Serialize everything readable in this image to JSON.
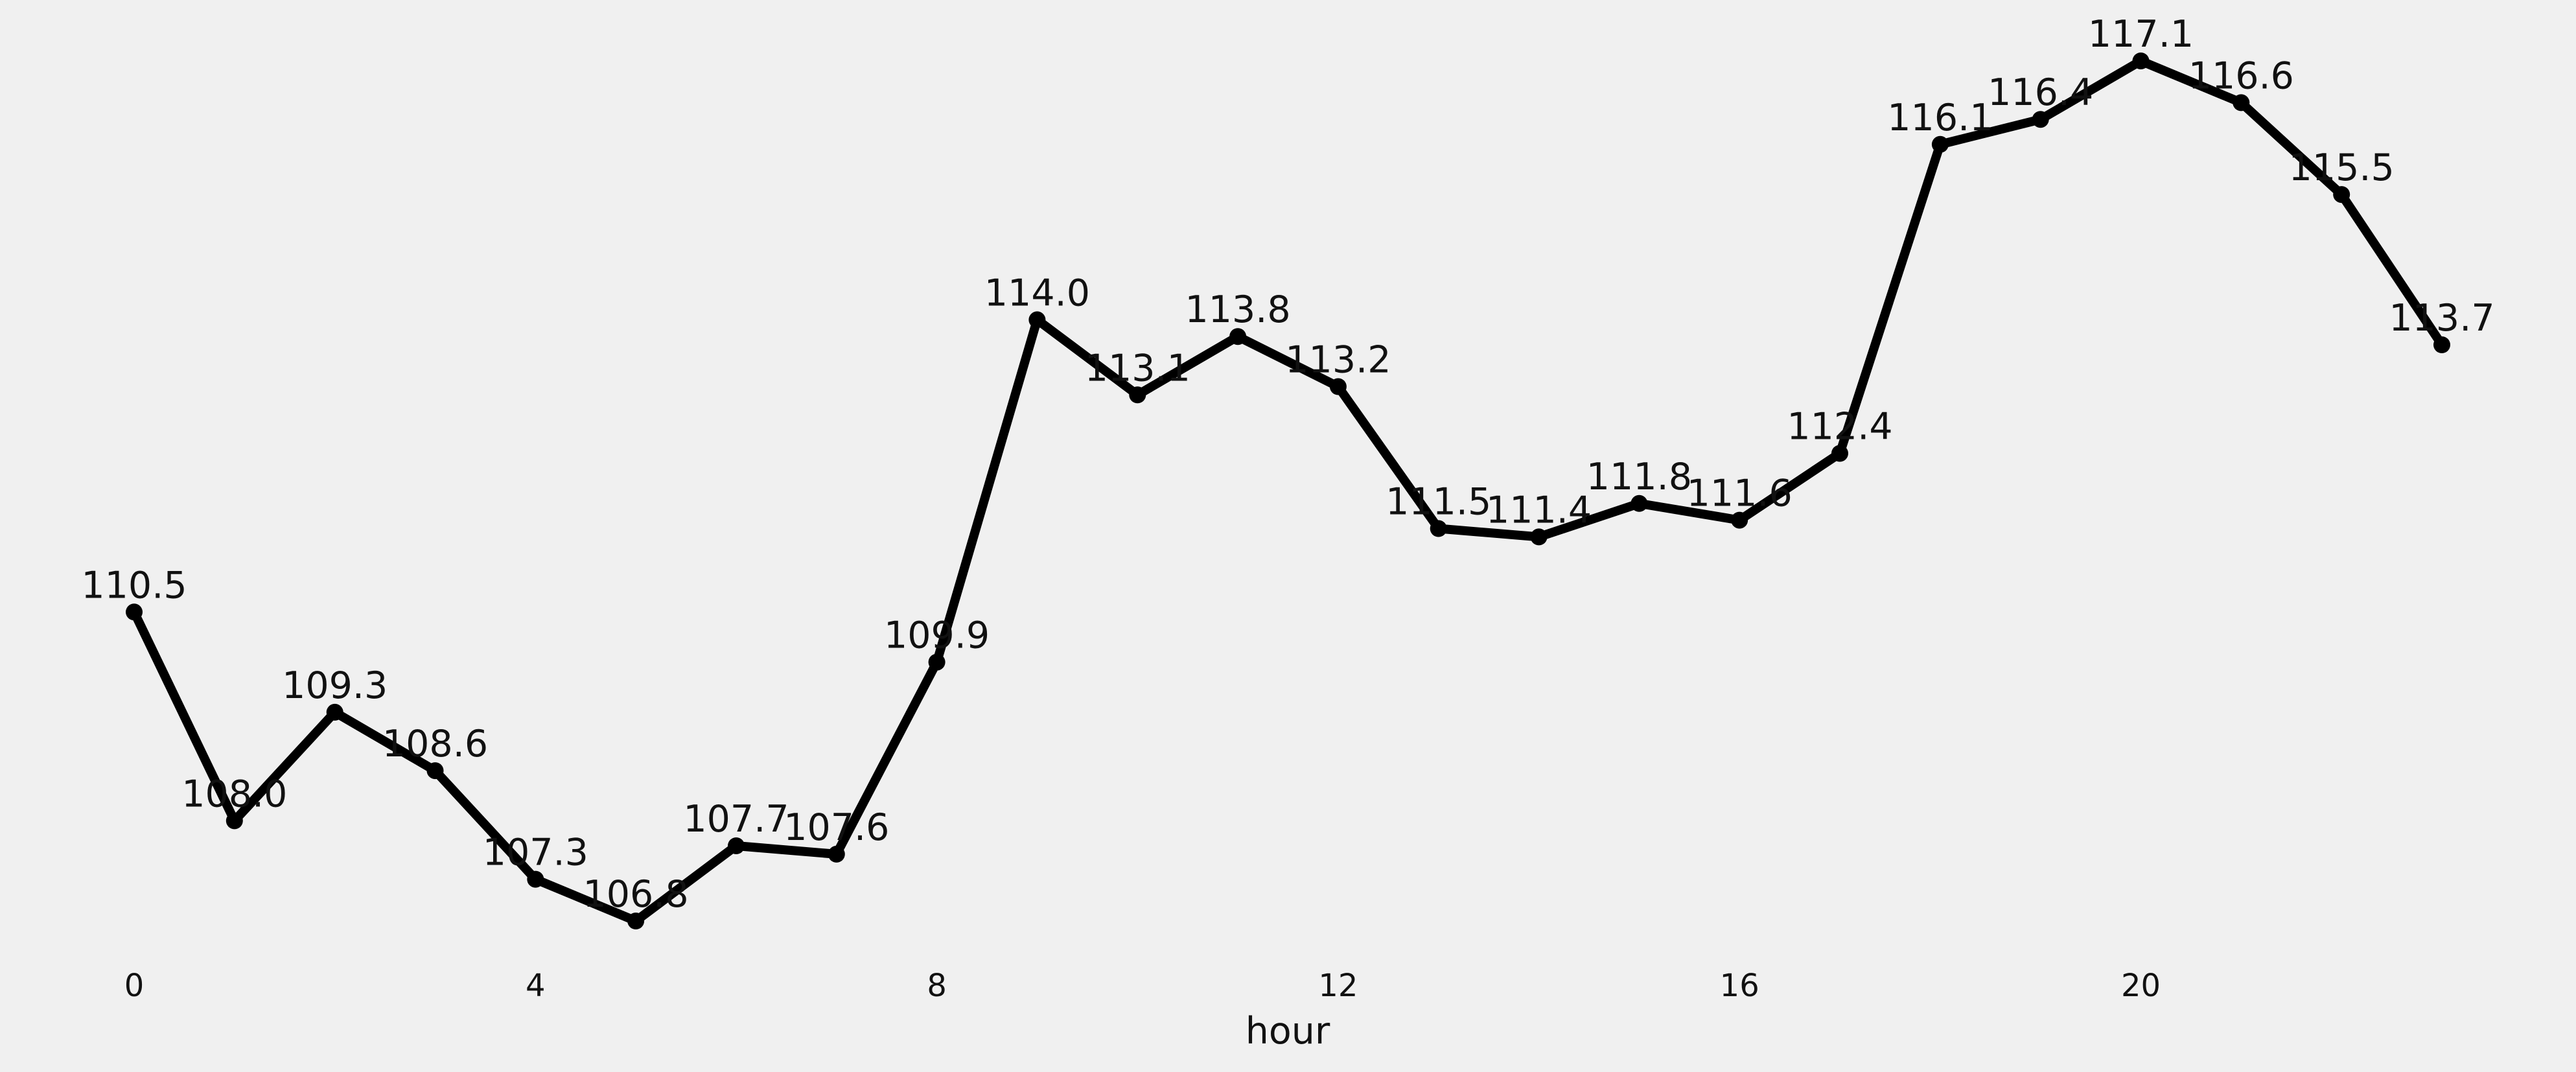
{
  "chart_data": {
    "type": "line",
    "title": "",
    "xlabel": "hour",
    "ylabel": "",
    "x": [
      0,
      1,
      2,
      3,
      4,
      5,
      6,
      7,
      8,
      9,
      10,
      11,
      12,
      13,
      14,
      15,
      16,
      17,
      18,
      19,
      20,
      21,
      22,
      23
    ],
    "values": [
      110.5,
      108.0,
      109.3,
      108.6,
      107.3,
      106.8,
      107.7,
      107.6,
      109.9,
      114.0,
      113.1,
      113.8,
      113.2,
      111.5,
      111.4,
      111.8,
      111.6,
      112.4,
      116.1,
      116.4,
      117.1,
      116.6,
      115.5,
      113.7
    ],
    "labels": [
      "110.5",
      "108.0",
      "109.3",
      "108.6",
      "107.3",
      "106.8",
      "107.7",
      "107.6",
      "109.9",
      "114.0",
      "113.1",
      "113.8",
      "113.2",
      "111.5",
      "111.4",
      "111.8",
      "111.6",
      "112.4",
      "116.1",
      "116.4",
      "117.1",
      "116.6",
      "115.5",
      "113.7"
    ],
    "xticks": [
      0,
      4,
      8,
      12,
      16,
      20
    ],
    "xtick_labels": [
      "0",
      "4",
      "8",
      "12",
      "16",
      "20"
    ],
    "xlim": [
      -1.3,
      24.3
    ],
    "ylim": [
      106.3,
      117.75
    ],
    "grid": false,
    "line_color": "#000000",
    "marker_color": "#000000",
    "background_color": "#f0f0f0"
  }
}
